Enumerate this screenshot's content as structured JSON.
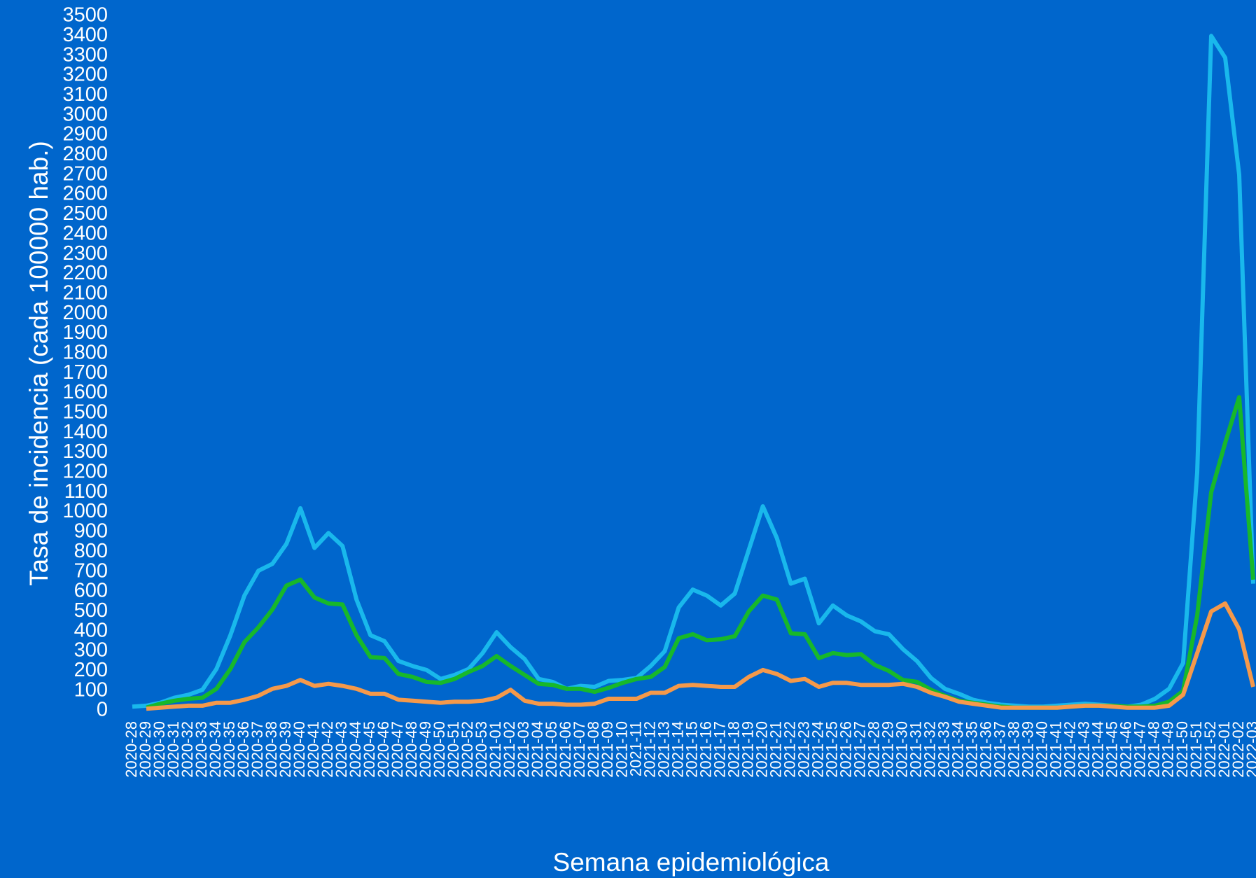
{
  "chart_data": {
    "type": "line",
    "x_label": "Semana epidemiológica",
    "y_label": "Tasa de incidencia (cada 100000 hab.)",
    "categories": [
      "2020-28",
      "2020-29",
      "2020-30",
      "2020-31",
      "2020-32",
      "2020-33",
      "2020-34",
      "2020-35",
      "2020-36",
      "2020-37",
      "2020-38",
      "2020-39",
      "2020-40",
      "2020-41",
      "2020-42",
      "2020-43",
      "2020-44",
      "2020-45",
      "2020-46",
      "2020-47",
      "2020-48",
      "2020-49",
      "2020-50",
      "2020-51",
      "2020-52",
      "2020-53",
      "2021-01",
      "2021-02",
      "2021-03",
      "2021-04",
      "2021-05",
      "2021-06",
      "2021-07",
      "2021-08",
      "2021-09",
      "2021-10",
      "2021-11",
      "2021-12",
      "2021-13",
      "2021-14",
      "2021-15",
      "2021-16",
      "2021-17",
      "2021-18",
      "2021-19",
      "2021-20",
      "2021-21",
      "2021-22",
      "2021-23",
      "2021-24",
      "2021-25",
      "2021-26",
      "2021-27",
      "2021-28",
      "2021-29",
      "2021-30",
      "2021-31",
      "2021-32",
      "2021-33",
      "2021-34",
      "2021-35",
      "2021-36",
      "2021-37",
      "2021-38",
      "2021-39",
      "2021-40",
      "2021-41",
      "2021-42",
      "2021-43",
      "2021-44",
      "2021-45",
      "2021-46",
      "2021-47",
      "2021-48",
      "2021-49",
      "2021-50",
      "2021-51",
      "2021-52",
      "2022-01",
      "2022-02",
      "2022-03"
    ],
    "series": [
      {
        "color": "#19b8ec",
        "values": [
          20,
          25,
          40,
          65,
          80,
          105,
          210,
          380,
          580,
          705,
          740,
          840,
          1020,
          820,
          895,
          830,
          560,
          380,
          350,
          250,
          225,
          205,
          160,
          180,
          210,
          290,
          395,
          320,
          260,
          160,
          145,
          110,
          125,
          120,
          150,
          155,
          165,
          225,
          300,
          520,
          610,
          580,
          530,
          590,
          810,
          1030,
          870,
          640,
          665,
          440,
          530,
          480,
          450,
          400,
          385,
          310,
          250,
          165,
          110,
          85,
          55,
          40,
          30,
          25,
          20,
          20,
          25,
          30,
          35,
          30,
          25,
          20,
          30,
          60,
          110,
          240,
          1200,
          3400,
          3290,
          2700,
          640
        ]
      },
      {
        "color": "#17b82a",
        "values": [
          null,
          15,
          35,
          50,
          60,
          65,
          110,
          210,
          345,
          420,
          510,
          630,
          660,
          570,
          540,
          535,
          380,
          270,
          265,
          185,
          170,
          145,
          140,
          160,
          195,
          225,
          275,
          225,
          180,
          135,
          130,
          110,
          110,
          95,
          115,
          140,
          160,
          170,
          220,
          365,
          385,
          355,
          360,
          375,
          500,
          580,
          560,
          390,
          385,
          265,
          290,
          280,
          285,
          230,
          200,
          155,
          145,
          105,
          75,
          50,
          40,
          30,
          20,
          15,
          15,
          15,
          15,
          20,
          25,
          25,
          25,
          20,
          20,
          25,
          45,
          100,
          480,
          1100,
          1350,
          1580,
          660
        ]
      },
      {
        "color": "#f5994a",
        "values": [
          null,
          10,
          15,
          20,
          25,
          25,
          40,
          40,
          55,
          75,
          110,
          125,
          155,
          125,
          135,
          125,
          110,
          85,
          85,
          55,
          50,
          45,
          40,
          45,
          45,
          50,
          65,
          105,
          50,
          35,
          35,
          30,
          30,
          35,
          60,
          60,
          60,
          90,
          90,
          125,
          130,
          125,
          120,
          120,
          170,
          205,
          185,
          150,
          160,
          120,
          140,
          140,
          130,
          130,
          130,
          135,
          120,
          90,
          70,
          45,
          35,
          25,
          15,
          15,
          15,
          15,
          15,
          20,
          25,
          25,
          20,
          15,
          15,
          15,
          25,
          80,
          290,
          500,
          540,
          410,
          120
        ]
      }
    ],
    "ylim": [
      0,
      3500
    ],
    "yticks": [
      0,
      100,
      200,
      300,
      400,
      500,
      600,
      700,
      800,
      900,
      1000,
      1100,
      1200,
      1300,
      1400,
      1500,
      1600,
      1700,
      1800,
      1900,
      2000,
      2100,
      2200,
      2300,
      2400,
      2500,
      2600,
      2700,
      2800,
      2900,
      3000,
      3100,
      3200,
      3300,
      3400,
      3500
    ],
    "grid": false
  }
}
